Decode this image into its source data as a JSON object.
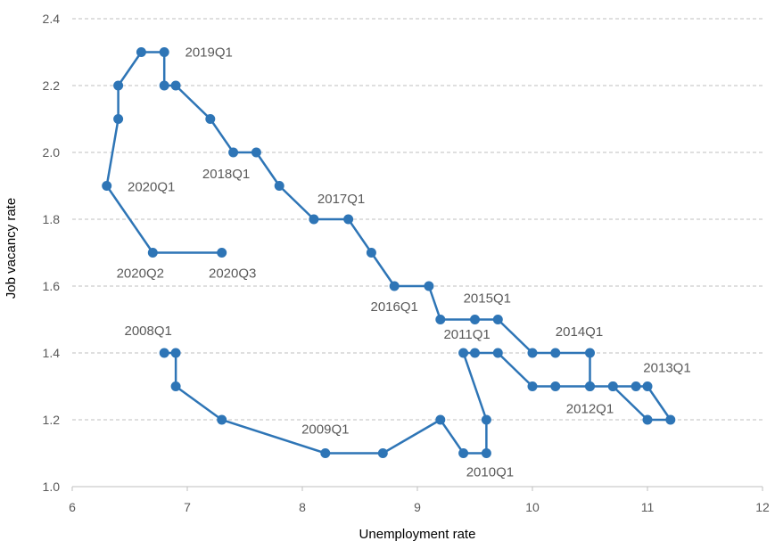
{
  "chart_data": {
    "type": "line",
    "title": "",
    "xlabel": "Unemployment rate",
    "ylabel": "Job vacancy rate",
    "xlim": [
      6,
      12
    ],
    "ylim": [
      1.0,
      2.4
    ],
    "xticks": [
      "6",
      "7",
      "8",
      "9",
      "10",
      "11",
      "12"
    ],
    "yticks": [
      "1.0",
      "1.2",
      "1.4",
      "1.6",
      "1.8",
      "2.0",
      "2.2",
      "2.4"
    ],
    "grid": "horizontal dashed",
    "legend": "none",
    "series": [
      {
        "color": "#2e75b6",
        "points": [
          [
            6.8,
            1.4
          ],
          [
            6.9,
            1.4
          ],
          [
            6.9,
            1.3
          ],
          [
            7.3,
            1.2
          ],
          [
            8.2,
            1.1
          ],
          [
            8.7,
            1.1
          ],
          [
            9.2,
            1.2
          ],
          [
            9.4,
            1.1
          ],
          [
            9.6,
            1.1
          ],
          [
            9.6,
            1.2
          ],
          [
            9.4,
            1.4
          ],
          [
            9.5,
            1.4
          ],
          [
            9.7,
            1.4
          ],
          [
            10.0,
            1.3
          ],
          [
            10.2,
            1.3
          ],
          [
            10.5,
            1.3
          ],
          [
            10.7,
            1.3
          ],
          [
            10.9,
            1.3
          ],
          [
            11.0,
            1.3
          ],
          [
            11.2,
            1.2
          ],
          [
            11.0,
            1.2
          ],
          [
            10.7,
            1.3
          ],
          [
            10.5,
            1.3
          ],
          [
            10.5,
            1.4
          ],
          [
            10.2,
            1.4
          ],
          [
            10.0,
            1.4
          ],
          [
            9.7,
            1.5
          ],
          [
            9.5,
            1.5
          ],
          [
            9.2,
            1.5
          ],
          [
            9.1,
            1.6
          ],
          [
            8.8,
            1.6
          ],
          [
            8.6,
            1.7
          ],
          [
            8.4,
            1.8
          ],
          [
            8.1,
            1.8
          ],
          [
            7.8,
            1.9
          ],
          [
            7.6,
            2.0
          ],
          [
            7.4,
            2.0
          ],
          [
            7.2,
            2.1
          ],
          [
            6.9,
            2.2
          ],
          [
            6.8,
            2.2
          ],
          [
            6.8,
            2.3
          ],
          [
            6.6,
            2.3
          ],
          [
            6.4,
            2.2
          ],
          [
            6.4,
            2.1
          ],
          [
            6.3,
            1.9
          ],
          [
            6.7,
            1.7
          ],
          [
            7.3,
            1.7
          ]
        ]
      }
    ],
    "annotations": [
      {
        "text": "2008Q1",
        "x": 6.8,
        "y": 1.4
      },
      {
        "text": "2009Q1",
        "x": 8.2,
        "y": 1.1
      },
      {
        "text": "2010Q1",
        "x": 9.6,
        "y": 1.1
      },
      {
        "text": "2011Q1",
        "x": 9.4,
        "y": 1.4
      },
      {
        "text": "2012Q1",
        "x": 10.5,
        "y": 1.3
      },
      {
        "text": "2013Q1",
        "x": 11.0,
        "y": 1.3
      },
      {
        "text": "2014Q1",
        "x": 10.5,
        "y": 1.4
      },
      {
        "text": "2015Q1",
        "x": 9.7,
        "y": 1.5
      },
      {
        "text": "2016Q1",
        "x": 8.8,
        "y": 1.6
      },
      {
        "text": "2017Q1",
        "x": 8.4,
        "y": 1.8
      },
      {
        "text": "2018Q1",
        "x": 7.4,
        "y": 2.0
      },
      {
        "text": "2019Q1",
        "x": 6.8,
        "y": 2.3
      },
      {
        "text": "2020Q1",
        "x": 6.3,
        "y": 1.9
      },
      {
        "text": "2020Q2",
        "x": 6.7,
        "y": 1.7
      },
      {
        "text": "2020Q3",
        "x": 7.3,
        "y": 1.7
      }
    ]
  }
}
